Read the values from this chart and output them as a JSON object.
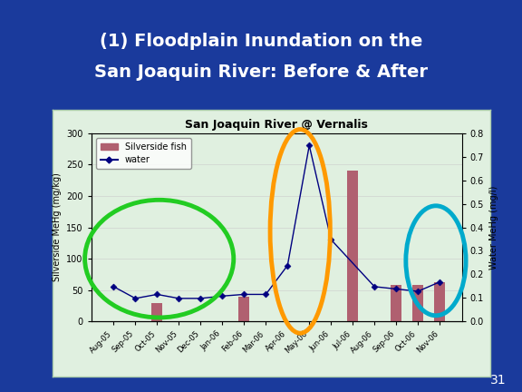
{
  "title_line1": "(1) Floodplain Inundation on the",
  "title_line2": "San Joaquin River: Before & After",
  "chart_title": "San Joaquin River @ Vernalis",
  "background_color": "#1a3a9c",
  "chart_bg_color": "#e0f0e0",
  "chart_border_color": "#b0d0b0",
  "slide_number": "31",
  "categories": [
    "Aug-05",
    "Sep-05",
    "Oct-05",
    "Nov-05",
    "Dec-05",
    "Jan-06",
    "Feb-06",
    "Mar-06",
    "Apr-06",
    "May-06",
    "Jun-06",
    "Jul-06",
    "Aug-06",
    "Sep-06",
    "Oct-06",
    "Nov-06"
  ],
  "bar_values": [
    0,
    0,
    30,
    0,
    0,
    0,
    40,
    0,
    0,
    0,
    0,
    240,
    0,
    58,
    58,
    63
  ],
  "water_values": [
    0.148,
    0.098,
    0.115,
    0.098,
    0.098,
    0.108,
    0.115,
    0.115,
    0.238,
    0.748,
    0.348,
    null,
    0.148,
    0.138,
    0.128,
    0.168
  ],
  "bar_color": "#b06070",
  "line_color": "#000080",
  "marker_color": "#000080",
  "left_ylabel": "Silverside MeHg (mg/kg)",
  "right_ylabel": "Water MeHg (mg/l)",
  "ylim_left": [
    0,
    300
  ],
  "ylim_right": [
    0,
    0.8
  ],
  "yticks_left": [
    0,
    50,
    100,
    150,
    200,
    250,
    300
  ],
  "yticks_right": [
    0.0,
    0.1,
    0.2,
    0.3,
    0.4,
    0.5,
    0.6,
    0.7,
    0.8
  ],
  "title_color": "#ffffff",
  "title_fontsize": 14,
  "chart_title_fontsize": 9
}
